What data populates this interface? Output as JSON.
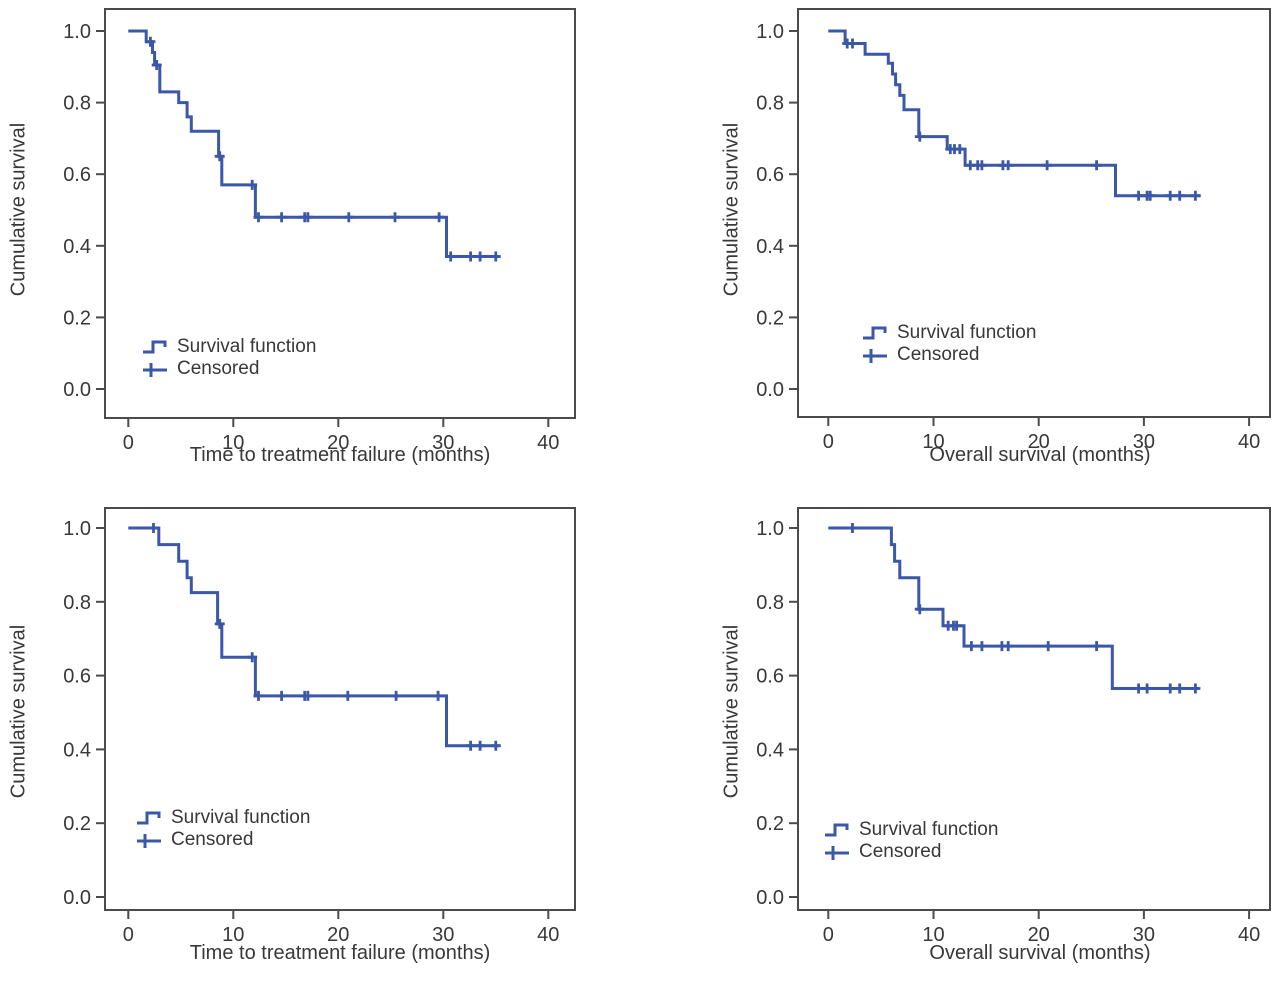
{
  "figure": {
    "curve_color": "#3A57A8",
    "axis_color": "#4B4B4B",
    "text_color": "#383838",
    "background": "#FFFFFF"
  },
  "chart_data": [
    {
      "id": "time-to-treatment-failure-cohort-1",
      "type": "line",
      "subtype": "kaplan_meier_step",
      "title": "",
      "xlabel": "Time to treatment failure (months)",
      "ylabel": "Cumulative survival",
      "xlim": [
        0,
        42
      ],
      "ylim": [
        0,
        1
      ],
      "x_ticks": [
        0,
        10,
        20,
        30,
        40
      ],
      "y_ticks": [
        1.0,
        0.8,
        0.6,
        0.4,
        0.2,
        0.0
      ],
      "grid": false,
      "legend_entries": [
        "Survival function",
        "Censored"
      ],
      "legend_position": "inside-lower-left",
      "series": [
        {
          "name": "Survival function",
          "steps": [
            [
              0,
              1.0
            ],
            [
              1.7,
              0.97
            ],
            [
              2.3,
              0.94
            ],
            [
              2.5,
              0.905
            ],
            [
              3.0,
              0.83
            ],
            [
              4.8,
              0.8
            ],
            [
              5.6,
              0.76
            ],
            [
              6.0,
              0.72
            ],
            [
              8.6,
              0.65
            ],
            [
              8.9,
              0.57
            ],
            [
              12.1,
              0.48
            ],
            [
              30.3,
              0.37
            ]
          ],
          "end_time": 35.3
        }
      ],
      "censored_points": [
        [
          2.1,
          0.97
        ],
        [
          2.7,
          0.905
        ],
        [
          8.7,
          0.65
        ],
        [
          11.8,
          0.57
        ],
        [
          12.4,
          0.48
        ],
        [
          14.6,
          0.48
        ],
        [
          16.8,
          0.48
        ],
        [
          17.1,
          0.48
        ],
        [
          21.0,
          0.48
        ],
        [
          25.4,
          0.48
        ],
        [
          29.6,
          0.48
        ],
        [
          30.7,
          0.37
        ],
        [
          32.6,
          0.37
        ],
        [
          33.5,
          0.37
        ],
        [
          35.0,
          0.37
        ]
      ]
    },
    {
      "id": "overall-survival-cohort-1",
      "type": "line",
      "subtype": "kaplan_meier_step",
      "title": "",
      "xlabel": "Overall survival (months)",
      "ylabel": "Cumulative survival",
      "xlim": [
        0,
        42
      ],
      "ylim": [
        0,
        1
      ],
      "x_ticks": [
        0,
        10,
        20,
        30,
        40
      ],
      "y_ticks": [
        1.0,
        0.8,
        0.6,
        0.4,
        0.2,
        0.0
      ],
      "grid": false,
      "legend_entries": [
        "Survival function",
        "Censored"
      ],
      "legend_position": "inside-lower-left",
      "series": [
        {
          "name": "Survival function",
          "steps": [
            [
              0,
              1.0
            ],
            [
              1.6,
              0.965
            ],
            [
              3.5,
              0.935
            ],
            [
              5.7,
              0.91
            ],
            [
              6.1,
              0.88
            ],
            [
              6.4,
              0.85
            ],
            [
              6.8,
              0.82
            ],
            [
              7.2,
              0.78
            ],
            [
              8.6,
              0.705
            ],
            [
              11.3,
              0.67
            ],
            [
              13.0,
              0.625
            ],
            [
              27.3,
              0.54
            ]
          ],
          "end_time": 35.4
        }
      ],
      "censored_points": [
        [
          1.8,
          0.965
        ],
        [
          2.3,
          0.965
        ],
        [
          8.7,
          0.705
        ],
        [
          11.6,
          0.67
        ],
        [
          12.0,
          0.67
        ],
        [
          12.5,
          0.67
        ],
        [
          13.5,
          0.625
        ],
        [
          14.2,
          0.625
        ],
        [
          14.6,
          0.625
        ],
        [
          16.6,
          0.625
        ],
        [
          17.1,
          0.625
        ],
        [
          20.8,
          0.625
        ],
        [
          25.5,
          0.625
        ],
        [
          29.5,
          0.54
        ],
        [
          30.3,
          0.54
        ],
        [
          30.6,
          0.54
        ],
        [
          32.5,
          0.54
        ],
        [
          33.4,
          0.54
        ],
        [
          34.9,
          0.54
        ]
      ]
    },
    {
      "id": "time-to-treatment-failure-cohort-2",
      "type": "line",
      "subtype": "kaplan_meier_step",
      "title": "",
      "xlabel": "Time to treatment failure (months)",
      "ylabel": "Cumulative survival",
      "xlim": [
        0,
        42
      ],
      "ylim": [
        0,
        1
      ],
      "x_ticks": [
        0,
        10,
        20,
        30,
        40
      ],
      "y_ticks": [
        1.0,
        0.8,
        0.6,
        0.4,
        0.2,
        0.0
      ],
      "grid": false,
      "legend_entries": [
        "Survival function",
        "Censored"
      ],
      "legend_position": "inside-lower-left",
      "series": [
        {
          "name": "Survival function",
          "steps": [
            [
              0,
              1.0
            ],
            [
              2.9,
              0.955
            ],
            [
              4.8,
              0.91
            ],
            [
              5.6,
              0.865
            ],
            [
              6.0,
              0.825
            ],
            [
              8.5,
              0.74
            ],
            [
              8.9,
              0.65
            ],
            [
              12.1,
              0.545
            ],
            [
              30.3,
              0.41
            ]
          ],
          "end_time": 35.3
        }
      ],
      "censored_points": [
        [
          2.4,
          1.0
        ],
        [
          8.7,
          0.74
        ],
        [
          11.8,
          0.65
        ],
        [
          12.4,
          0.545
        ],
        [
          14.6,
          0.545
        ],
        [
          16.8,
          0.545
        ],
        [
          17.1,
          0.545
        ],
        [
          20.9,
          0.545
        ],
        [
          25.5,
          0.545
        ],
        [
          29.5,
          0.545
        ],
        [
          32.6,
          0.41
        ],
        [
          33.5,
          0.41
        ],
        [
          35.0,
          0.41
        ]
      ]
    },
    {
      "id": "overall-survival-cohort-2",
      "type": "line",
      "subtype": "kaplan_meier_step",
      "title": "",
      "xlabel": "Overall survival (months)",
      "ylabel": "Cumulative survival",
      "xlim": [
        0,
        42
      ],
      "ylim": [
        0,
        1
      ],
      "x_ticks": [
        0,
        10,
        20,
        30,
        40
      ],
      "y_ticks": [
        1.0,
        0.8,
        0.6,
        0.4,
        0.2,
        0.0
      ],
      "grid": false,
      "legend_entries": [
        "Survival function",
        "Censored"
      ],
      "legend_position": "inside-lower-left",
      "series": [
        {
          "name": "Survival function",
          "steps": [
            [
              0,
              1.0
            ],
            [
              6.0,
              0.955
            ],
            [
              6.3,
              0.91
            ],
            [
              6.8,
              0.865
            ],
            [
              8.6,
              0.78
            ],
            [
              10.9,
              0.735
            ],
            [
              12.9,
              0.68
            ],
            [
              27.0,
              0.565
            ]
          ],
          "end_time": 35.2
        }
      ],
      "censored_points": [
        [
          2.3,
          1.0
        ],
        [
          8.7,
          0.78
        ],
        [
          11.4,
          0.735
        ],
        [
          11.9,
          0.735
        ],
        [
          12.2,
          0.735
        ],
        [
          13.6,
          0.68
        ],
        [
          14.6,
          0.68
        ],
        [
          16.5,
          0.68
        ],
        [
          17.1,
          0.68
        ],
        [
          20.9,
          0.68
        ],
        [
          25.5,
          0.68
        ],
        [
          29.5,
          0.565
        ],
        [
          30.3,
          0.565
        ],
        [
          32.5,
          0.565
        ],
        [
          33.4,
          0.565
        ],
        [
          34.9,
          0.565
        ]
      ]
    }
  ]
}
